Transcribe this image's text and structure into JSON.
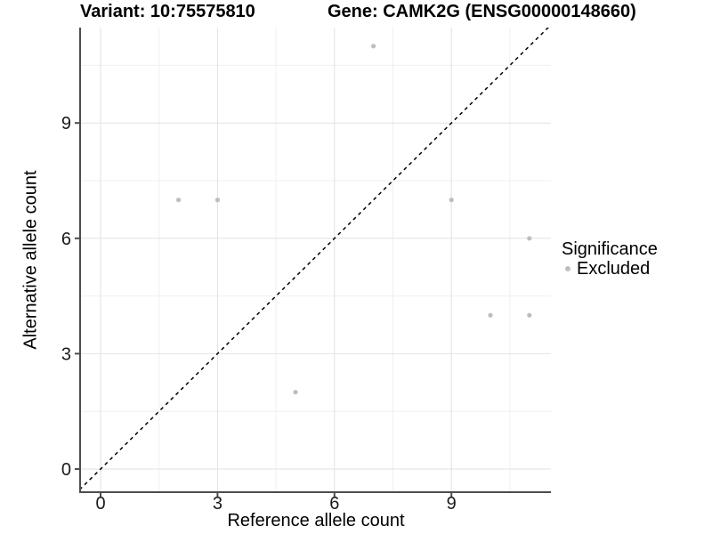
{
  "titles": {
    "variant": "Variant: 10:75575810",
    "gene": "Gene: CAMK2G (ENSG00000148660)"
  },
  "axes": {
    "x": {
      "label": "Reference allele count"
    },
    "y": {
      "label": "Alternative allele count"
    }
  },
  "legend": {
    "title": "Significance",
    "items": [
      {
        "label": "Excluded",
        "color": "#bebebe"
      }
    ]
  },
  "colors": {
    "background": "#ffffff",
    "axis_line": "#4d4d4d",
    "major_grid": "#e2e2e2",
    "minor_grid": "#f0f0f0",
    "tick_label": "#1a1a1a",
    "identity_line": "#000000",
    "point": "#bebebe"
  },
  "chart_data": {
    "type": "scatter",
    "title": "Variant: 10:75575810 — Gene: CAMK2G (ENSG00000148660)",
    "xlabel": "Reference allele count",
    "ylabel": "Alternative allele count",
    "xlim": [
      -0.6,
      11.7
    ],
    "ylim": [
      -0.6,
      11.7
    ],
    "x_major_ticks": [
      0,
      3,
      6,
      9
    ],
    "y_major_ticks": [
      0,
      3,
      6,
      9
    ],
    "x_minor_gridlines": [
      1.5,
      4.5,
      7.5,
      10.5
    ],
    "y_minor_gridlines": [
      1.5,
      4.5,
      7.5,
      10.5
    ],
    "grid": "major+minor",
    "legend_position": "right",
    "identity_line": {
      "equation": "y = x",
      "style": "dashed",
      "color": "#000000"
    },
    "series": [
      {
        "name": "Excluded",
        "color": "#bebebe",
        "points": [
          {
            "x": 2,
            "y": 7
          },
          {
            "x": 3,
            "y": 7
          },
          {
            "x": 5,
            "y": 2
          },
          {
            "x": 7,
            "y": 11
          },
          {
            "x": 9,
            "y": 7
          },
          {
            "x": 10,
            "y": 4
          },
          {
            "x": 11,
            "y": 4
          },
          {
            "x": 11,
            "y": 6
          }
        ]
      }
    ]
  }
}
